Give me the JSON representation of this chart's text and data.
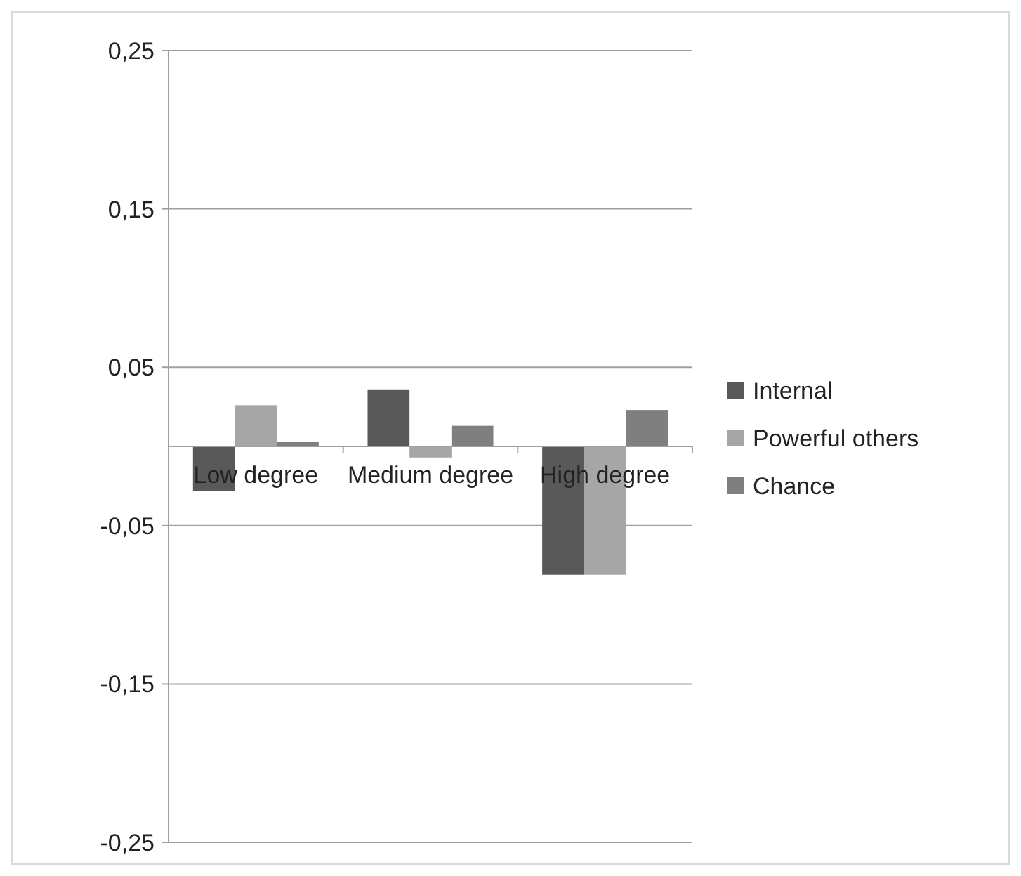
{
  "chart_data": {
    "type": "bar",
    "categories": [
      "Low degree",
      "Medium degree",
      "High degree"
    ],
    "series": [
      {
        "name": "Internal",
        "color": "#595959",
        "values": [
          -0.028,
          0.036,
          -0.081
        ]
      },
      {
        "name": "Powerful others",
        "color": "#a6a6a6",
        "values": [
          0.026,
          -0.007,
          -0.081
        ]
      },
      {
        "name": "Chance",
        "color": "#7f7f7f",
        "values": [
          0.003,
          0.013,
          0.023
        ]
      }
    ],
    "ylim": [
      -0.25,
      0.25
    ],
    "yticks": [
      {
        "value": 0.25,
        "label": "0,25"
      },
      {
        "value": 0.15,
        "label": "0,15"
      },
      {
        "value": 0.05,
        "label": "0,05"
      },
      {
        "value": -0.05,
        "label": "-0,05"
      },
      {
        "value": -0.15,
        "label": "-0,15"
      },
      {
        "value": -0.25,
        "label": "-0,25"
      }
    ],
    "grid": "y",
    "legend": "right"
  }
}
